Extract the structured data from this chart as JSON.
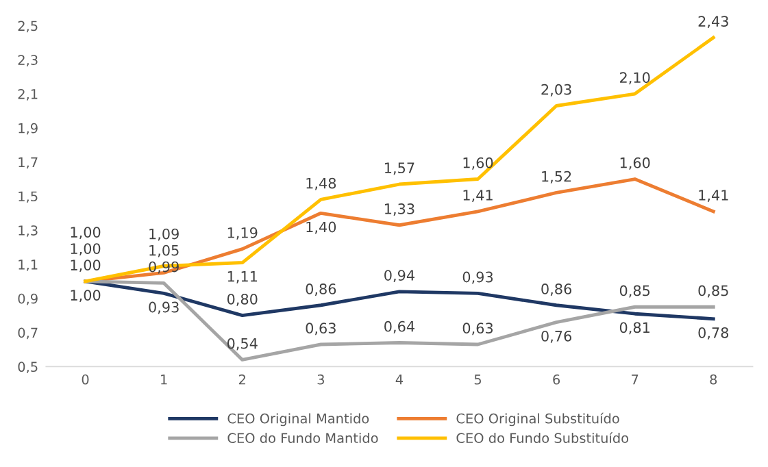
{
  "chart_data": {
    "type": "line",
    "categories": [
      "0",
      "1",
      "2",
      "3",
      "4",
      "5",
      "6",
      "7",
      "8"
    ],
    "series": [
      {
        "name": "CEO Original Mantido",
        "color": "#1f3864",
        "values": [
          1.0,
          0.93,
          0.8,
          0.86,
          0.94,
          0.93,
          0.86,
          0.81,
          0.78
        ],
        "value_labels": [
          "1,00",
          "0,93",
          "0,80",
          "0,86",
          "0,94",
          "0,93",
          "0,86",
          "0,81",
          "0,78"
        ]
      },
      {
        "name": "CEO Original Substituído",
        "color": "#ed7d31",
        "values": [
          1.0,
          1.05,
          1.19,
          1.4,
          1.33,
          1.41,
          1.52,
          1.6,
          1.41
        ],
        "value_labels": [
          "1,00",
          "1,05",
          "1,19",
          "1,40",
          "1,33",
          "1,41",
          "1,52",
          "1,60",
          "1,41"
        ]
      },
      {
        "name": "CEO do Fundo Mantido",
        "color": "#a5a5a5",
        "values": [
          1.0,
          0.99,
          0.54,
          0.63,
          0.64,
          0.63,
          0.76,
          0.85,
          0.85
        ],
        "value_labels": [
          "1,00",
          "0,99",
          "0,54",
          "0,63",
          "0,64",
          "0,63",
          "0,76",
          "0,85",
          "0,85"
        ]
      },
      {
        "name": "CEO do Fundo Substituído",
        "color": "#ffc000",
        "values": [
          1.0,
          1.09,
          1.11,
          1.48,
          1.57,
          1.6,
          2.03,
          2.1,
          2.43
        ],
        "value_labels": [
          "1,00",
          "1,09",
          "1,11",
          "1,48",
          "1,57",
          "1,60",
          "2,03",
          "2,10",
          "2,43"
        ]
      }
    ],
    "ylim": [
      0.5,
      2.5
    ],
    "yticks": [
      {
        "value": 0.5,
        "label": "0,5"
      },
      {
        "value": 0.7,
        "label": "0,7"
      },
      {
        "value": 0.9,
        "label": "0,9"
      },
      {
        "value": 1.1,
        "label": "1,1"
      },
      {
        "value": 1.3,
        "label": "1,3"
      },
      {
        "value": 1.5,
        "label": "1,5"
      },
      {
        "value": 1.7,
        "label": "1,7"
      },
      {
        "value": 1.9,
        "label": "1,9"
      },
      {
        "value": 2.1,
        "label": "2,1"
      },
      {
        "value": 2.3,
        "label": "2,3"
      },
      {
        "value": 2.5,
        "label": "2,5"
      }
    ],
    "grid": false,
    "legend": "bottom",
    "marker": "none",
    "line_style": "solid"
  }
}
